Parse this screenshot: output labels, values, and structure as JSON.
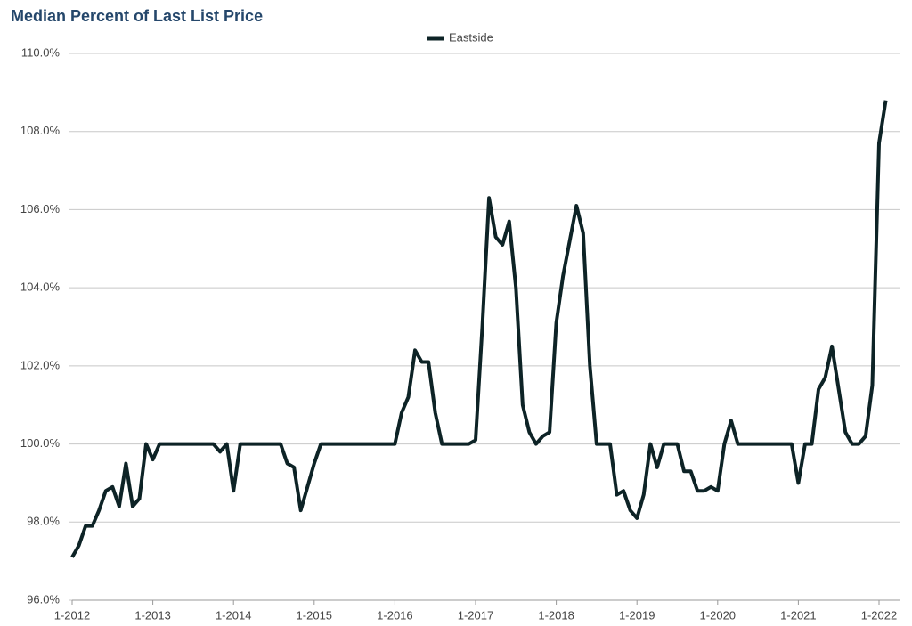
{
  "chart_data": {
    "type": "line",
    "title": "Median Percent of Last List Price",
    "categories": [
      "1-2012",
      null,
      null,
      null,
      null,
      null,
      null,
      null,
      null,
      null,
      null,
      null,
      "1-2013",
      null,
      null,
      null,
      null,
      null,
      null,
      null,
      null,
      null,
      null,
      null,
      "1-2014",
      null,
      null,
      null,
      null,
      null,
      null,
      null,
      null,
      null,
      null,
      null,
      "1-2015",
      null,
      null,
      null,
      null,
      null,
      null,
      null,
      null,
      null,
      null,
      null,
      "1-2016",
      null,
      null,
      null,
      null,
      null,
      null,
      null,
      null,
      null,
      null,
      null,
      "1-2017",
      null,
      null,
      null,
      null,
      null,
      null,
      null,
      null,
      null,
      null,
      null,
      "1-2018",
      null,
      null,
      null,
      null,
      null,
      null,
      null,
      null,
      null,
      null,
      null,
      "1-2019",
      null,
      null,
      null,
      null,
      null,
      null,
      null,
      null,
      null,
      null,
      null,
      "1-2020",
      null,
      null,
      null,
      null,
      null,
      null,
      null,
      null,
      null,
      null,
      null,
      "1-2021",
      null,
      null,
      null,
      null,
      null,
      null,
      null,
      null,
      null,
      null,
      null,
      "1-2022",
      null
    ],
    "series": [
      {
        "name": "Eastside",
        "color": "#0d2326",
        "values": [
          97.1,
          97.4,
          97.9,
          97.9,
          98.3,
          98.8,
          98.9,
          98.4,
          99.5,
          98.4,
          98.6,
          100,
          99.6,
          100,
          100,
          100,
          100,
          100,
          100,
          100,
          100,
          100,
          99.8,
          100,
          98.8,
          100,
          100,
          100,
          100,
          100,
          100,
          100,
          99.5,
          99.4,
          98.3,
          98.9,
          99.5,
          100,
          100,
          100,
          100,
          100,
          100,
          100,
          100,
          100,
          100,
          100,
          100,
          100.8,
          101.2,
          102.4,
          102.1,
          102.1,
          100.8,
          100,
          100,
          100,
          100,
          100,
          100.1,
          103,
          106.3,
          105.3,
          105.1,
          105.7,
          104,
          101,
          100.3,
          100,
          100.2,
          100.3,
          103.1,
          104.3,
          105.2,
          106.1,
          105.4,
          102,
          100,
          100,
          100,
          98.7,
          98.8,
          98.3,
          98.1,
          98.7,
          100,
          99.4,
          100,
          100,
          100,
          99.3,
          99.3,
          98.8,
          98.8,
          98.9,
          98.8,
          100,
          100.6,
          100,
          100,
          100,
          100,
          100,
          100,
          100,
          100,
          100,
          99,
          100,
          100,
          101.4,
          101.7,
          102.5,
          101.4,
          100.3,
          100,
          100,
          100.2,
          101.5,
          107.7,
          108.8
        ]
      }
    ],
    "ylim": [
      96,
      110
    ],
    "yticks": [
      {
        "value": 96,
        "label": "96.0%"
      },
      {
        "value": 98,
        "label": "98.0%"
      },
      {
        "value": 100,
        "label": "100.0%"
      },
      {
        "value": 102,
        "label": "102.0%"
      },
      {
        "value": 104,
        "label": "104.0%"
      },
      {
        "value": 106,
        "label": "106.0%"
      },
      {
        "value": 108,
        "label": "108.0%"
      },
      {
        "value": 110,
        "label": "110.0%"
      }
    ],
    "grid": true,
    "legend": "top"
  }
}
